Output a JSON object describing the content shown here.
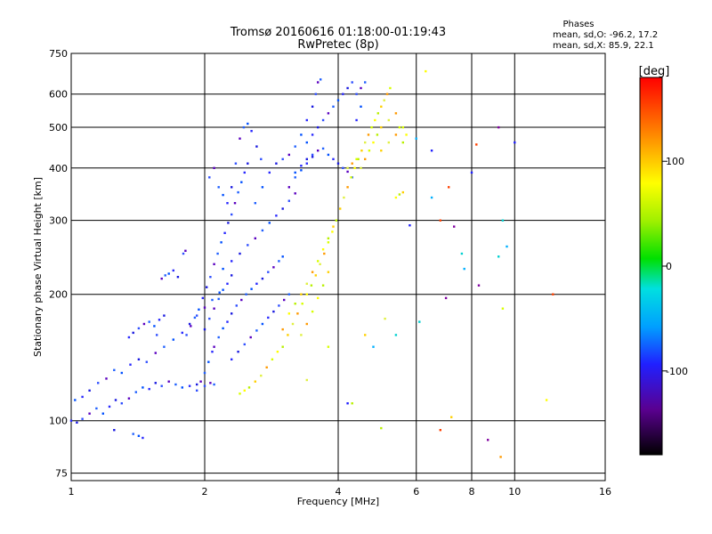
{
  "chart_data": {
    "type": "scatter",
    "title": "Tromsø 20160616 01:18:00-01:19:43",
    "subtitle": "RwPretec (8p)",
    "xlabel": "Frequency [MHz]",
    "ylabel": "Stationary phase Virtual Height [km]",
    "x_scale": "log",
    "y_scale": "log",
    "xlim": [
      1,
      16
    ],
    "ylim": [
      72,
      750
    ],
    "x_ticks": [
      1,
      2,
      4,
      6,
      8,
      10,
      16
    ],
    "x_tick_labels": [
      "1",
      "2",
      "4",
      "6",
      "8",
      "10",
      "16"
    ],
    "y_ticks": [
      75,
      100,
      200,
      300,
      400,
      500,
      600,
      750
    ],
    "y_tick_labels": [
      "75",
      "100",
      "200",
      "300",
      "400",
      "500",
      "600",
      "750"
    ],
    "grid": true,
    "stats": {
      "header": "Phases",
      "lines": [
        "mean, sd,O: -96.2, 17.2",
        "mean, sd,X: 85.9, 22.1"
      ]
    },
    "colorbar": {
      "label": "[deg]",
      "range": [
        -180,
        180
      ],
      "ticks": [
        100,
        0,
        -100
      ],
      "tick_labels": [
        "100",
        "0",
        "-100"
      ]
    },
    "series": [
      {
        "polarization": "O",
        "phase_mean": -96.2,
        "points": [
          [
            1.0,
            100
          ],
          [
            1.03,
            99
          ],
          [
            1.06,
            101
          ],
          [
            1.1,
            104
          ],
          [
            1.14,
            107
          ],
          [
            1.18,
            104
          ],
          [
            1.22,
            108
          ],
          [
            1.26,
            112
          ],
          [
            1.3,
            110
          ],
          [
            1.35,
            113
          ],
          [
            1.4,
            117
          ],
          [
            1.45,
            120
          ],
          [
            1.5,
            119
          ],
          [
            1.55,
            123
          ],
          [
            1.6,
            121
          ],
          [
            1.66,
            124
          ],
          [
            1.72,
            122
          ],
          [
            1.78,
            120
          ],
          [
            1.85,
            121
          ],
          [
            1.92,
            122
          ],
          [
            2.0,
            121
          ],
          [
            2.06,
            123
          ],
          [
            2.1,
            122
          ],
          [
            1.02,
            112
          ],
          [
            1.06,
            114
          ],
          [
            1.1,
            118
          ],
          [
            1.15,
            123
          ],
          [
            1.2,
            126
          ],
          [
            1.25,
            132
          ],
          [
            1.3,
            130
          ],
          [
            1.36,
            136
          ],
          [
            1.42,
            140
          ],
          [
            1.48,
            138
          ],
          [
            1.55,
            145
          ],
          [
            1.62,
            150
          ],
          [
            1.7,
            156
          ],
          [
            1.78,
            162
          ],
          [
            1.85,
            170
          ],
          [
            1.92,
            178
          ],
          [
            2.0,
            186
          ],
          [
            2.08,
            194
          ],
          [
            2.16,
            202
          ],
          [
            1.35,
            158
          ],
          [
            1.38,
            162
          ],
          [
            1.42,
            166
          ],
          [
            1.46,
            170
          ],
          [
            1.5,
            172
          ],
          [
            1.54,
            168
          ],
          [
            1.58,
            174
          ],
          [
            1.62,
            178
          ],
          [
            1.56,
            160
          ],
          [
            1.6,
            218
          ],
          [
            1.63,
            222
          ],
          [
            1.66,
            224
          ],
          [
            1.7,
            228
          ],
          [
            1.74,
            220
          ],
          [
            1.79,
            250
          ],
          [
            1.81,
            254
          ],
          [
            1.38,
            93
          ],
          [
            1.42,
            92
          ],
          [
            1.45,
            91
          ],
          [
            1.25,
            95
          ],
          [
            1.82,
            160
          ],
          [
            1.86,
            168
          ],
          [
            1.9,
            176
          ],
          [
            1.94,
            184
          ],
          [
            1.98,
            196
          ],
          [
            2.02,
            208
          ],
          [
            2.06,
            220
          ],
          [
            2.1,
            236
          ],
          [
            2.14,
            250
          ],
          [
            2.18,
            266
          ],
          [
            2.22,
            280
          ],
          [
            2.26,
            296
          ],
          [
            2.3,
            310
          ],
          [
            2.34,
            330
          ],
          [
            2.38,
            350
          ],
          [
            2.42,
            370
          ],
          [
            2.46,
            390
          ],
          [
            2.5,
            410
          ],
          [
            2.05,
            380
          ],
          [
            2.1,
            400
          ],
          [
            2.15,
            360
          ],
          [
            2.2,
            345
          ],
          [
            2.25,
            330
          ],
          [
            2.3,
            360
          ],
          [
            2.35,
            410
          ],
          [
            2.4,
            470
          ],
          [
            2.45,
            500
          ],
          [
            2.5,
            510
          ],
          [
            2.55,
            490
          ],
          [
            2.62,
            450
          ],
          [
            2.68,
            420
          ],
          [
            2.1,
            150
          ],
          [
            2.15,
            158
          ],
          [
            2.2,
            166
          ],
          [
            2.25,
            172
          ],
          [
            2.3,
            180
          ],
          [
            2.36,
            188
          ],
          [
            2.42,
            194
          ],
          [
            2.48,
            200
          ],
          [
            2.55,
            206
          ],
          [
            2.62,
            212
          ],
          [
            2.7,
            218
          ],
          [
            2.78,
            226
          ],
          [
            2.86,
            232
          ],
          [
            2.94,
            240
          ],
          [
            3.0,
            246
          ],
          [
            2.3,
            140
          ],
          [
            2.38,
            146
          ],
          [
            2.46,
            152
          ],
          [
            2.54,
            158
          ],
          [
            2.62,
            164
          ],
          [
            2.7,
            170
          ],
          [
            2.78,
            176
          ],
          [
            2.86,
            182
          ],
          [
            2.94,
            188
          ],
          [
            3.02,
            194
          ],
          [
            3.1,
            200
          ],
          [
            2.2,
            230
          ],
          [
            2.3,
            240
          ],
          [
            2.4,
            250
          ],
          [
            2.5,
            262
          ],
          [
            2.6,
            272
          ],
          [
            2.7,
            284
          ],
          [
            2.8,
            296
          ],
          [
            2.9,
            308
          ],
          [
            3.0,
            320
          ],
          [
            3.1,
            334
          ],
          [
            3.2,
            348
          ],
          [
            2.6,
            330
          ],
          [
            2.7,
            360
          ],
          [
            2.8,
            390
          ],
          [
            2.9,
            410
          ],
          [
            3.0,
            420
          ],
          [
            3.1,
            430
          ],
          [
            3.2,
            450
          ],
          [
            3.3,
            480
          ],
          [
            3.4,
            520
          ],
          [
            3.5,
            560
          ],
          [
            3.56,
            600
          ],
          [
            3.6,
            640
          ],
          [
            3.65,
            650
          ],
          [
            3.2,
            390
          ],
          [
            3.3,
            405
          ],
          [
            3.4,
            420
          ],
          [
            3.5,
            430
          ],
          [
            3.6,
            440
          ],
          [
            3.7,
            445
          ],
          [
            3.8,
            430
          ],
          [
            3.9,
            420
          ],
          [
            4.0,
            410
          ],
          [
            4.1,
            400
          ],
          [
            4.2,
            392
          ],
          [
            4.3,
            380
          ],
          [
            3.4,
            460
          ],
          [
            3.5,
            480
          ],
          [
            3.6,
            500
          ],
          [
            3.7,
            520
          ],
          [
            3.8,
            540
          ],
          [
            3.9,
            560
          ],
          [
            4.0,
            580
          ],
          [
            4.1,
            600
          ],
          [
            4.2,
            620
          ],
          [
            4.3,
            640
          ],
          [
            3.1,
            360
          ],
          [
            3.2,
            380
          ],
          [
            3.3,
            395
          ],
          [
            3.4,
            410
          ],
          [
            3.5,
            425
          ],
          [
            4.4,
            600
          ],
          [
            4.5,
            620
          ],
          [
            4.6,
            640
          ],
          [
            4.5,
            560
          ],
          [
            4.4,
            520
          ],
          [
            2.0,
            165
          ],
          [
            2.05,
            175
          ],
          [
            2.1,
            185
          ],
          [
            2.15,
            195
          ],
          [
            2.2,
            205
          ],
          [
            2.25,
            212
          ],
          [
            2.3,
            222
          ],
          [
            1.92,
            118
          ],
          [
            1.96,
            124
          ],
          [
            2.0,
            130
          ],
          [
            2.04,
            138
          ],
          [
            2.08,
            146
          ]
        ]
      },
      {
        "polarization": "X",
        "phase_mean": 85.9,
        "points": [
          [
            2.4,
            116
          ],
          [
            2.46,
            118
          ],
          [
            2.52,
            120
          ],
          [
            2.6,
            124
          ],
          [
            2.68,
            128
          ],
          [
            2.76,
            134
          ],
          [
            2.84,
            140
          ],
          [
            2.92,
            146
          ],
          [
            3.0,
            150
          ],
          [
            3.08,
            160
          ],
          [
            3.16,
            170
          ],
          [
            3.24,
            180
          ],
          [
            3.32,
            190
          ],
          [
            3.4,
            200
          ],
          [
            3.48,
            210
          ],
          [
            3.56,
            222
          ],
          [
            3.64,
            236
          ],
          [
            3.72,
            250
          ],
          [
            3.8,
            266
          ],
          [
            3.88,
            282
          ],
          [
            3.96,
            300
          ],
          [
            4.04,
            320
          ],
          [
            4.12,
            340
          ],
          [
            4.2,
            360
          ],
          [
            4.28,
            380
          ],
          [
            4.36,
            400
          ],
          [
            4.44,
            420
          ],
          [
            4.52,
            440
          ],
          [
            4.6,
            460
          ],
          [
            4.68,
            480
          ],
          [
            4.76,
            500
          ],
          [
            4.84,
            520
          ],
          [
            4.92,
            540
          ],
          [
            5.0,
            560
          ],
          [
            5.08,
            580
          ],
          [
            5.16,
            600
          ],
          [
            5.24,
            620
          ],
          [
            3.1,
            180
          ],
          [
            3.2,
            190
          ],
          [
            3.3,
            200
          ],
          [
            3.4,
            212
          ],
          [
            3.5,
            226
          ],
          [
            3.6,
            240
          ],
          [
            3.7,
            256
          ],
          [
            3.8,
            272
          ],
          [
            3.9,
            290
          ],
          [
            3.3,
            160
          ],
          [
            3.4,
            170
          ],
          [
            3.5,
            182
          ],
          [
            3.6,
            196
          ],
          [
            3.7,
            210
          ],
          [
            3.8,
            226
          ],
          [
            4.5,
            400
          ],
          [
            4.6,
            420
          ],
          [
            4.7,
            440
          ],
          [
            4.8,
            460
          ],
          [
            4.9,
            480
          ],
          [
            5.0,
            500
          ],
          [
            5.2,
            520
          ],
          [
            5.4,
            540
          ],
          [
            5.6,
            500
          ],
          [
            5.7,
            480
          ],
          [
            5.6,
            460
          ],
          [
            5.0,
            440
          ],
          [
            5.2,
            460
          ],
          [
            5.4,
            480
          ],
          [
            5.5,
            500
          ],
          [
            5.4,
            340
          ],
          [
            5.5,
            346
          ],
          [
            5.6,
            350
          ],
          [
            4.2,
            400
          ],
          [
            4.3,
            410
          ],
          [
            4.4,
            420
          ],
          [
            6.3,
            680
          ],
          [
            4.3,
            110
          ],
          [
            4.6,
            160
          ],
          [
            5.1,
            175
          ],
          [
            9.3,
            82
          ],
          [
            9.4,
            185
          ],
          [
            11.8,
            112
          ],
          [
            5.0,
            96
          ],
          [
            7.2,
            102
          ],
          [
            3.4,
            125
          ],
          [
            3.0,
            165
          ],
          [
            3.8,
            150
          ]
        ]
      },
      {
        "polarization": "noise",
        "points": [
          [
            6.0,
            470
          ],
          [
            6.5,
            440
          ],
          [
            7.1,
            360
          ],
          [
            7.3,
            290
          ],
          [
            7.6,
            250
          ],
          [
            7.7,
            230
          ],
          [
            8.0,
            390
          ],
          [
            8.2,
            455
          ],
          [
            9.2,
            500
          ],
          [
            9.4,
            300
          ],
          [
            9.6,
            260
          ],
          [
            10.0,
            460
          ],
          [
            12.2,
            200
          ],
          [
            7.0,
            196
          ],
          [
            6.1,
            172
          ],
          [
            6.5,
            340
          ],
          [
            5.8,
            292
          ],
          [
            6.8,
            300
          ],
          [
            8.3,
            210
          ],
          [
            5.4,
            160
          ],
          [
            4.8,
            150
          ],
          [
            4.2,
            110
          ],
          [
            6.8,
            95
          ],
          [
            8.7,
            90
          ],
          [
            9.2,
            246
          ]
        ]
      }
    ]
  }
}
